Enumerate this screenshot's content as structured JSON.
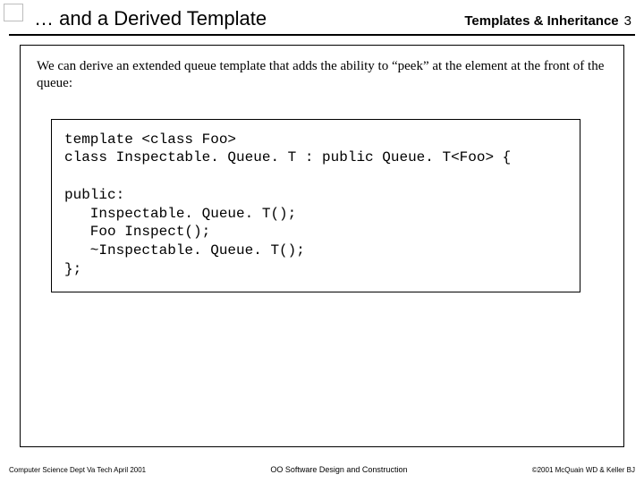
{
  "header": {
    "title_left": "… and a Derived Template",
    "title_right_label": "Templates & Inheritance",
    "title_right_num": "3"
  },
  "intro": "We can derive an extended queue template that adds the ability to “peek” at the element at the front of the queue:",
  "code": {
    "l1": "template <class Foo>",
    "l2": "class Inspectable. Queue. T : public Queue. T<Foo> {",
    "l3": "",
    "l4": "public:",
    "l5": "   Inspectable. Queue. T();",
    "l6": "   Foo Inspect();",
    "l7": "   ~Inspectable. Queue. T();",
    "l8": "};"
  },
  "footer": {
    "left": "Computer Science Dept Va Tech April 2001",
    "mid": "OO Software Design and Construction",
    "right": "©2001 McQuain WD & Keller BJ"
  },
  "colors": {
    "rule": "#000000",
    "border": "#000000",
    "text": "#000000",
    "background": "#ffffff",
    "corner_box": "#bdbdbd"
  }
}
